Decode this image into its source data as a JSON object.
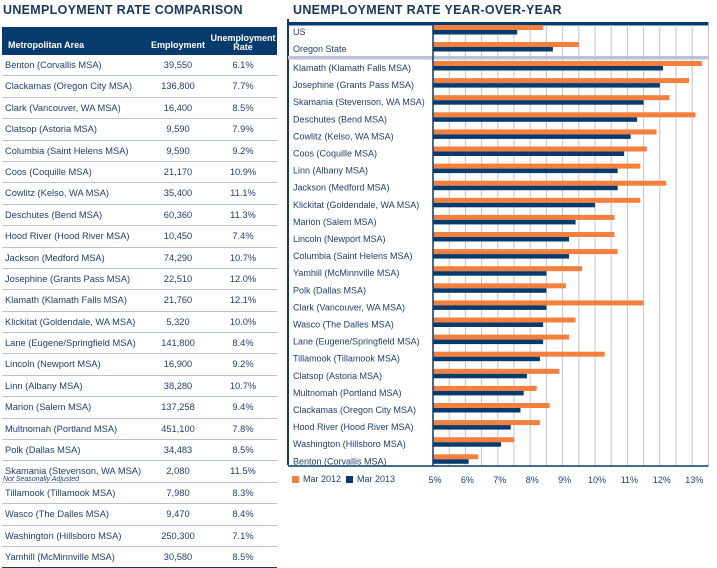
{
  "left": {
    "title": "UNEMPLOYMENT RATE COMPARISON",
    "headers": [
      "Metropolitan Area",
      "Employment",
      "Unemployment Rate"
    ],
    "rows": [
      {
        "area": "Benton (Corvallis MSA)",
        "employment": "39,550",
        "rate": "6.1%"
      },
      {
        "area": "Clackamas (Oregon City MSA)",
        "employment": "136,800",
        "rate": "7.7%"
      },
      {
        "area": "Clark (Vancouver, WA MSA)",
        "employment": "16,400",
        "rate": "8.5%"
      },
      {
        "area": "Clatsop (Astoria MSA)",
        "employment": "9,590",
        "rate": "7.9%"
      },
      {
        "area": "Columbia (Saint Helens MSA)",
        "employment": "9,590",
        "rate": "9.2%"
      },
      {
        "area": "Coos (Coquille MSA)",
        "employment": "21,170",
        "rate": "10.9%"
      },
      {
        "area": "Cowlitz (Kelso, WA MSA)",
        "employment": "35,400",
        "rate": "11.1%"
      },
      {
        "area": "Deschutes (Bend MSA)",
        "employment": "60,360",
        "rate": "11.3%"
      },
      {
        "area": "Hood River (Hood River MSA)",
        "employment": "10,450",
        "rate": "7.4%"
      },
      {
        "area": "Jackson (Medford MSA)",
        "employment": "74,290",
        "rate": "10.7%"
      },
      {
        "area": "Josephine (Grants Pass MSA)",
        "employment": "22,510",
        "rate": "12.0%"
      },
      {
        "area": "Klamath (Klamath Falls MSA)",
        "employment": "21,760",
        "rate": "12.1%"
      },
      {
        "area": "Klickitat (Goldendale, WA MSA)",
        "employment": "5,320",
        "rate": "10.0%"
      },
      {
        "area": "Lane (Eugene/Springfield MSA)",
        "employment": "141,800",
        "rate": "8.4%"
      },
      {
        "area": "Lincoln (Newport MSA)",
        "employment": "16,900",
        "rate": "9.2%"
      },
      {
        "area": "Linn (Albany MSA)",
        "employment": "38,280",
        "rate": "10.7%"
      },
      {
        "area": "Marion (Salem MSA)",
        "employment": "137,258",
        "rate": "9.4%"
      },
      {
        "area": "Multnomah (Portland MSA)",
        "employment": "451,100",
        "rate": "7.8%"
      },
      {
        "area": "Polk (Dallas MSA)",
        "employment": "34,483",
        "rate": "8.5%"
      },
      {
        "area": "Skamania (Stevenson, WA MSA)",
        "employment": "2,080",
        "rate": "11.5%"
      },
      {
        "area": "Tillamook (Tillamook MSA)",
        "employment": "7,980",
        "rate": "8.3%"
      },
      {
        "area": "Wasco (The Dalles MSA)",
        "employment": "9,470",
        "rate": "8.4%"
      },
      {
        "area": "Washington (Hillsboro MSA)",
        "employment": "250,300",
        "rate": "7.1%"
      },
      {
        "area": "Yamhill (McMinnville MSA)",
        "employment": "30,580",
        "rate": "8.5%"
      }
    ],
    "footnote": "Not Seasonally Adjusted"
  },
  "colors": {
    "navy": "#073b6d",
    "orange": "#f5803e",
    "grid": "#bcc3d8",
    "separator": "#bcc3d8"
  },
  "chart_data": {
    "type": "bar",
    "orientation": "horizontal",
    "title": "UNEMPLOYMENT RATE YEAR-OVER-YEAR",
    "xlabel": "",
    "ylabel": "",
    "xlim": [
      5,
      13.5
    ],
    "x_ticks": [
      "5%",
      "6%",
      "7%",
      "8%",
      "9%",
      "10%",
      "11%",
      "12%",
      "13%"
    ],
    "grid": true,
    "legend_position": "bottom-left",
    "series": [
      {
        "name": "Mar 2012",
        "color": "#f5803e"
      },
      {
        "name": "Mar 2013",
        "color": "#073b6d"
      }
    ],
    "categories": [
      "US",
      "Oregon State",
      "Klamath (Klamath Falls MSA)",
      "Josephine (Grants Pass MSA)",
      "Skamania (Stevenson, WA MSA)",
      "Deschutes (Bend MSA)",
      "Cowlitz (Kelso, WA MSA)",
      "Coos (Coquille MSA)",
      "Linn (Albany MSA)",
      "Jackson (Medford MSA)",
      "Klickitat (Goldendale, WA MSA)",
      "Marion (Salem MSA)",
      "Lincoln (Newport MSA)",
      "Columbia (Saint Helens MSA)",
      "Yamhill (McMinnville MSA)",
      "Polk (Dallas MSA)",
      "Clark (Vancouver, WA MSA)",
      "Wasco (The Dalles MSA)",
      "Lane (Eugene/Springfield MSA)",
      "Tillamook (Tillamook MSA)",
      "Clatsop (Astoria MSA)",
      "Multnomah (Portland MSA)",
      "Clackamas (Oregon City MSA)",
      "Hood River (Hood River MSA)",
      "Washington (Hillsboro MSA)",
      "Benton (Corvallis MSA)"
    ],
    "values_mar2012": [
      8.4,
      9.5,
      13.3,
      12.9,
      12.3,
      13.1,
      11.9,
      11.6,
      11.4,
      12.2,
      11.4,
      10.6,
      10.6,
      10.7,
      9.6,
      9.1,
      11.5,
      9.4,
      9.2,
      10.3,
      8.9,
      8.2,
      8.6,
      8.3,
      7.5,
      6.4
    ],
    "values_mar2013": [
      7.6,
      8.7,
      12.1,
      12.0,
      11.5,
      11.3,
      11.1,
      10.9,
      10.7,
      10.7,
      10.0,
      9.4,
      9.2,
      9.2,
      8.5,
      8.5,
      8.5,
      8.4,
      8.4,
      8.3,
      7.9,
      7.8,
      7.7,
      7.4,
      7.1,
      6.1
    ],
    "separator_after_index": 1
  }
}
